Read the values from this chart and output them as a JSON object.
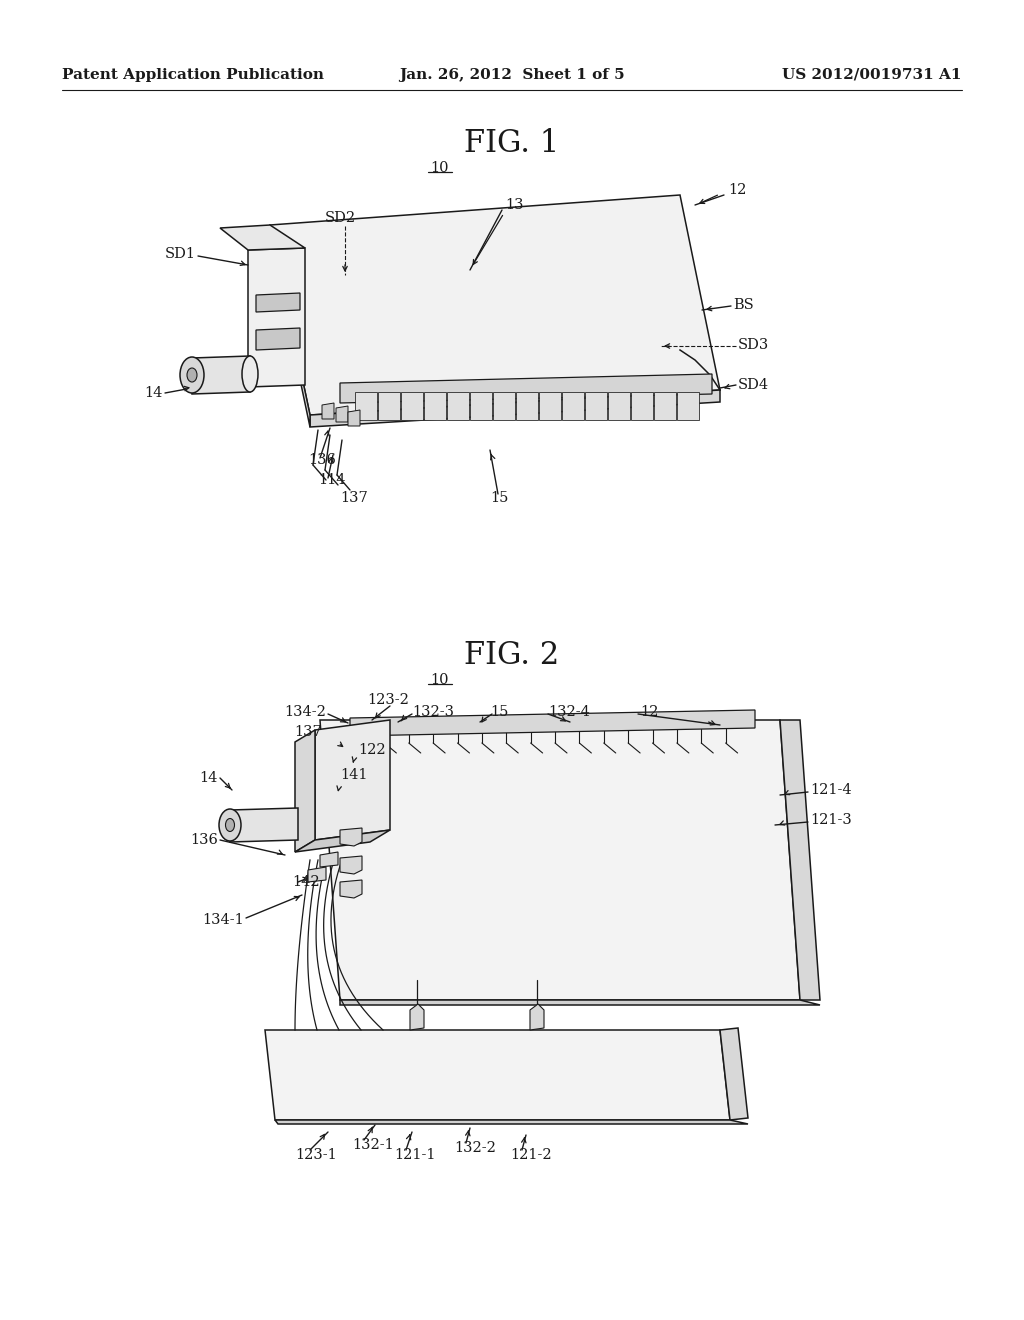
{
  "background_color": "#ffffff",
  "header_left": "Patent Application Publication",
  "header_center": "Jan. 26, 2012  Sheet 1 of 5",
  "header_right": "US 2012/0019731 A1",
  "fig1_title": "FIG. 1",
  "fig2_title": "FIG. 2",
  "label_fontsize": 10.5,
  "title_fontsize": 22,
  "header_fontsize": 11
}
